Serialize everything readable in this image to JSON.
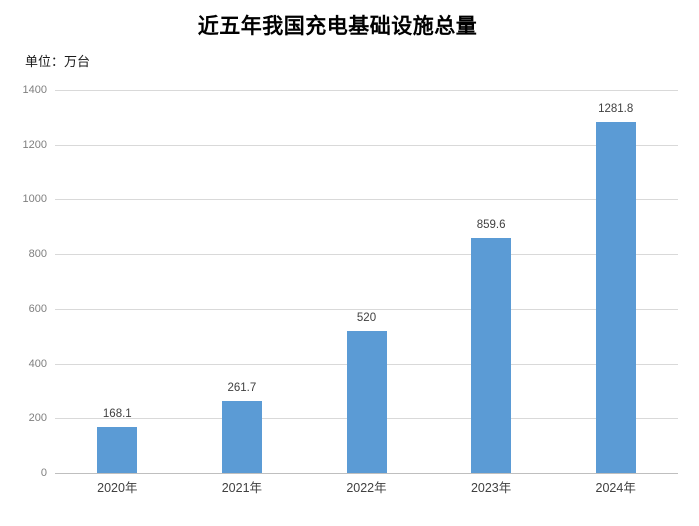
{
  "chart_data": {
    "type": "bar",
    "title": "近五年我国充电基础设施总量",
    "unit_label": "单位：万台",
    "categories": [
      "2020年",
      "2021年",
      "2022年",
      "2023年",
      "2024年"
    ],
    "values": [
      168.1,
      261.7,
      520,
      859.6,
      1281.8
    ],
    "value_labels": [
      "168.1",
      "261.7",
      "520",
      "859.6",
      "1281.8"
    ],
    "ylabel": "",
    "xlabel": "",
    "ylim": [
      0,
      1400
    ],
    "yticks": [
      0,
      200,
      400,
      600,
      800,
      1000,
      1200,
      1400
    ],
    "grid": "horizontal",
    "legend": "none",
    "bar_color": "#5b9bd5",
    "gridline_color": "#d9d9d9",
    "axis_line_color": "#bfbfbf",
    "ytick_color": "#7f7f7f",
    "label_color": "#404040"
  }
}
